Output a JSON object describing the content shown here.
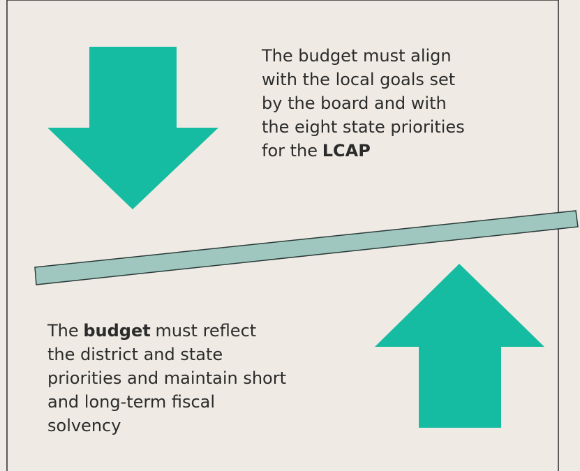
{
  "top_note": {
    "lines": [
      [
        {
          "text": "The budget must align"
        }
      ],
      [
        {
          "text": "with the local goals set"
        }
      ],
      [
        {
          "text": "by the board and with"
        }
      ],
      [
        {
          "text": "the eight state priorities"
        }
      ],
      [
        {
          "text": "for the"
        },
        {
          "text": "LCAP",
          "bold": true
        }
      ]
    ]
  },
  "bottom_note": {
    "lines": [
      [
        {
          "text": "The"
        },
        {
          "text": "budget",
          "bold": true
        },
        {
          "text": "must reflect"
        }
      ],
      [
        {
          "text": "the district and state"
        }
      ],
      [
        {
          "text": "priorities and maintain short"
        }
      ],
      [
        {
          "text": "and long-term fiscal"
        }
      ],
      [
        {
          "text": "solvency"
        }
      ]
    ]
  }
}
